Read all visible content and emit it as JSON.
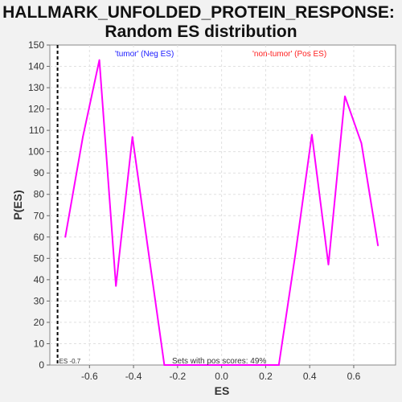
{
  "chart_data": {
    "type": "line",
    "title": "HALLMARK_UNFOLDED_PROTEIN_RESPONSE:",
    "subtitle": "Random ES distribution",
    "xlabel": "ES",
    "ylabel": "P(ES)",
    "xlim": [
      -0.78,
      0.79
    ],
    "ylim": [
      0,
      150
    ],
    "xticks": [
      -0.6,
      -0.4,
      -0.2,
      0.0,
      0.2,
      0.4,
      0.6
    ],
    "xtick_labels": [
      "-0.6",
      "-0.4",
      "-0.2",
      "0.0",
      "0.2",
      "0.4",
      "0.6"
    ],
    "yticks": [
      0,
      10,
      20,
      30,
      40,
      50,
      60,
      70,
      80,
      90,
      100,
      110,
      120,
      130,
      140,
      150
    ],
    "grid": true,
    "series": [
      {
        "color": "#ff00ff",
        "x": [
          -0.71,
          -0.63,
          -0.555,
          -0.48,
          -0.405,
          -0.335,
          -0.26,
          -0.19,
          -0.11,
          -0.04,
          0.04,
          0.11,
          0.19,
          0.26,
          0.335,
          0.41,
          0.485,
          0.56,
          0.635,
          0.71
        ],
        "y": [
          60,
          107,
          143,
          37,
          107,
          55,
          0,
          0,
          0,
          0,
          0,
          0,
          0,
          0,
          52,
          108,
          47,
          126,
          104,
          56
        ]
      }
    ],
    "es_line": {
      "x": -0.745,
      "label": "ES -0.7",
      "color": "#000000"
    },
    "annotations": {
      "neg": {
        "text": "'tumor' (Neg ES)",
        "color": "#1a1aff"
      },
      "pos": {
        "text": "'non-tumor' (Pos ES)",
        "color": "#ff2020"
      },
      "bottom": {
        "text": "Sets with pos scores: 49%",
        "color": "#333333"
      }
    }
  }
}
